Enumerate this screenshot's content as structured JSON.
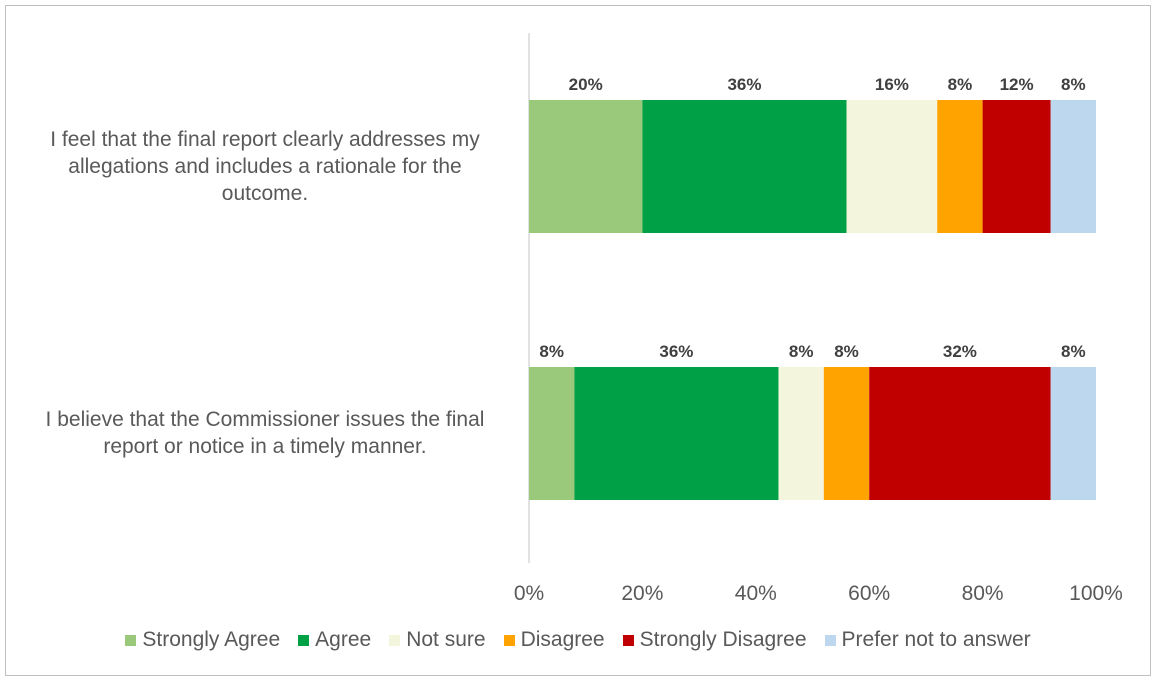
{
  "chart_data": {
    "type": "bar",
    "orientation": "horizontal-stacked-100",
    "categories": [
      "I feel that the final report clearly addresses my allegations and includes a rationale for the outcome.",
      "I believe that the Commissioner issues the final report or notice in a timely manner."
    ],
    "category_lines": [
      [
        "I feel that the final report clearly addresses my",
        "allegations and includes a rationale for the",
        "outcome."
      ],
      [
        "I believe that the Commissioner issues the final",
        "report or notice in a timely manner."
      ]
    ],
    "series": [
      {
        "name": "Strongly Agree",
        "color": "#9bc97c",
        "values": [
          20,
          8
        ],
        "labels": [
          "20%",
          "8%"
        ]
      },
      {
        "name": "Agree",
        "color": "#00a046",
        "values": [
          36,
          36
        ],
        "labels": [
          "36%",
          "36%"
        ]
      },
      {
        "name": "Not sure",
        "color": "#f3f5dc",
        "values": [
          16,
          8
        ],
        "labels": [
          "16%",
          "8%"
        ]
      },
      {
        "name": "Disagree",
        "color": "#ffa300",
        "values": [
          8,
          8
        ],
        "labels": [
          "8%",
          "8%"
        ]
      },
      {
        "name": "Strongly Disagree",
        "color": "#c00000",
        "values": [
          12,
          32
        ],
        "labels": [
          "12%",
          "32%"
        ]
      },
      {
        "name": "Prefer not to answer",
        "color": "#bdd7ee",
        "values": [
          8,
          8
        ],
        "labels": [
          "8%",
          "8%"
        ]
      }
    ],
    "xlim": [
      0,
      100
    ],
    "x_ticks": [
      "0%",
      "20%",
      "40%",
      "60%",
      "80%",
      "100%"
    ],
    "grid": false,
    "legend_position": "bottom",
    "title": "",
    "xlabel": "",
    "ylabel": ""
  }
}
